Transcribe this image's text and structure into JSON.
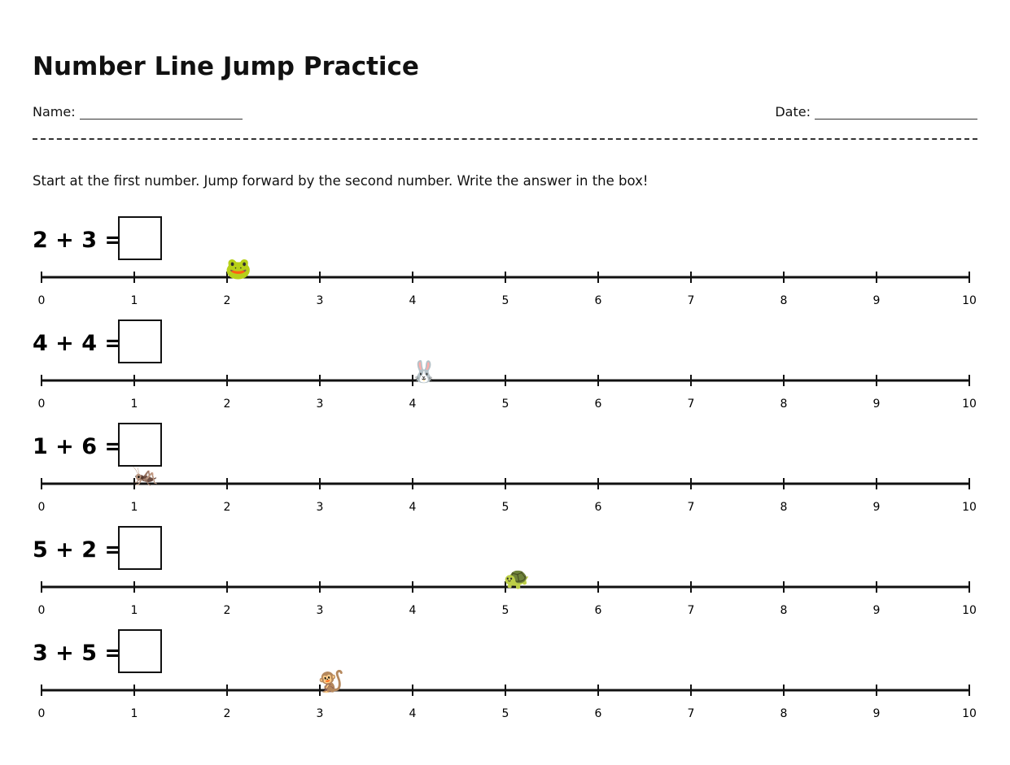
{
  "header": {
    "title": "Number Line Jump Practice",
    "name_label": "Name:",
    "date_label": "Date:"
  },
  "instructions": "Start at the first number. Jump forward by the second number. Write the answer in the box!",
  "number_line": {
    "ticks": [
      0,
      1,
      2,
      3,
      4,
      5,
      6,
      7,
      8,
      9,
      10
    ]
  },
  "problems": [
    {
      "expression": "2 + 3 =",
      "marker": "🐸",
      "marker_at": 2
    },
    {
      "expression": "4 + 4 =",
      "marker": "🐰",
      "marker_at": 4
    },
    {
      "expression": "1 + 6 =",
      "marker": "🦗",
      "marker_at": 1
    },
    {
      "expression": "5 + 2 =",
      "marker": "🐢",
      "marker_at": 5
    },
    {
      "expression": "3 + 5 =",
      "marker": "🐒",
      "marker_at": 3
    }
  ]
}
